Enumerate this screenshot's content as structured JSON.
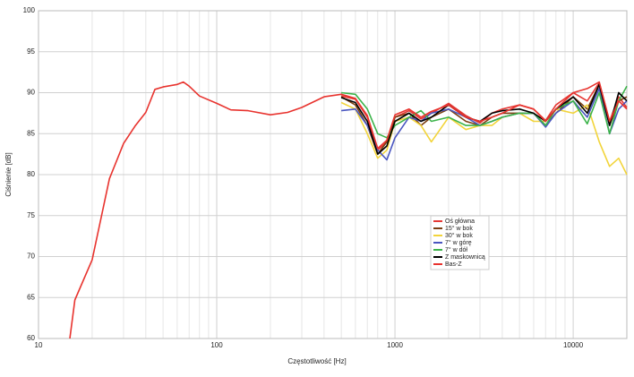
{
  "chart_data": {
    "type": "line",
    "log_x": true,
    "grid": true,
    "legend": "center-right",
    "xlabel": "Częstotliwość [Hz]",
    "ylabel": "Ciśnienie [dB]",
    "xlim": [
      10,
      20000
    ],
    "xticks": [
      10,
      100,
      1000,
      10000
    ],
    "xminorticks": [
      20,
      30,
      40,
      50,
      60,
      70,
      80,
      90,
      200,
      300,
      400,
      500,
      600,
      700,
      800,
      900,
      2000,
      3000,
      4000,
      5000,
      6000,
      7000,
      8000,
      9000
    ],
    "ylim": [
      60,
      100
    ],
    "yticks": [
      60,
      65,
      70,
      75,
      80,
      85,
      90,
      95,
      100
    ],
    "x": [
      15,
      16,
      20,
      25,
      30,
      35,
      40,
      45,
      50,
      60,
      65,
      70,
      80,
      100,
      120,
      150,
      200,
      250,
      300,
      400,
      500,
      600,
      700,
      800,
      900,
      1000,
      1200,
      1400,
      1600,
      2000,
      2500,
      3000,
      3500,
      4000,
      5000,
      6000,
      7000,
      8000,
      10000,
      12000,
      14000,
      16000,
      18000,
      20000
    ],
    "series": [
      {
        "name": "Oś główna",
        "color": "#e53935",
        "values": [
          null,
          null,
          null,
          null,
          null,
          null,
          null,
          null,
          null,
          null,
          null,
          null,
          null,
          null,
          null,
          null,
          null,
          null,
          null,
          null,
          89.6,
          89.2,
          87,
          83,
          84,
          87,
          87.8,
          86.8,
          87.5,
          88.7,
          87.2,
          86.3,
          87.5,
          88,
          88.5,
          88,
          86.6,
          88.5,
          90,
          89,
          91.2,
          86.5,
          89.5,
          88.2
        ]
      },
      {
        "name": "15° w bok",
        "color": "#7b3f12",
        "values": [
          null,
          null,
          null,
          null,
          null,
          null,
          null,
          null,
          null,
          null,
          null,
          null,
          null,
          null,
          null,
          null,
          null,
          null,
          null,
          null,
          89.5,
          88.5,
          86,
          82.5,
          84,
          87,
          87.5,
          86,
          87,
          88,
          86.5,
          86,
          87,
          87.5,
          87.5,
          87.5,
          86,
          87.5,
          89.5,
          88,
          91,
          86,
          89,
          89.5
        ]
      },
      {
        "name": "30° w bok",
        "color": "#f2d43a",
        "values": [
          null,
          null,
          null,
          null,
          null,
          null,
          null,
          null,
          null,
          null,
          null,
          null,
          null,
          null,
          null,
          null,
          null,
          null,
          null,
          null,
          88.8,
          88,
          85,
          82,
          83,
          86.5,
          87,
          86,
          84,
          87,
          85.5,
          86,
          86,
          87,
          87.5,
          86.5,
          86.5,
          88,
          87.5,
          88.5,
          84,
          81,
          82,
          80
        ]
      },
      {
        "name": "7° w górę",
        "color": "#4a56c0",
        "values": [
          null,
          null,
          null,
          null,
          null,
          null,
          null,
          null,
          null,
          null,
          null,
          null,
          null,
          null,
          null,
          null,
          null,
          null,
          null,
          null,
          87.8,
          88,
          86,
          83,
          81.8,
          84.5,
          87,
          86.5,
          87.5,
          88,
          87,
          86,
          86.5,
          87,
          87.5,
          87.5,
          85.8,
          87.5,
          89,
          87,
          90.5,
          85,
          88,
          89
        ]
      },
      {
        "name": "7° w dół",
        "color": "#3cb34a",
        "values": [
          null,
          null,
          null,
          null,
          null,
          null,
          null,
          null,
          null,
          null,
          null,
          null,
          null,
          null,
          null,
          null,
          null,
          null,
          null,
          null,
          90,
          89.8,
          88,
          85,
          84.5,
          86,
          87,
          87.8,
          86.5,
          87,
          86,
          86,
          86.5,
          87,
          87.5,
          87.5,
          86,
          88,
          89,
          86.2,
          90,
          85,
          89,
          90.8
        ]
      },
      {
        "name": "Z maskownicą",
        "color": "#000000",
        "values": [
          null,
          null,
          null,
          null,
          null,
          null,
          null,
          null,
          null,
          null,
          null,
          null,
          null,
          null,
          null,
          null,
          null,
          null,
          null,
          null,
          89.4,
          88.8,
          86.5,
          82.5,
          83.5,
          86.5,
          87.5,
          86.5,
          87,
          88.5,
          87,
          86.5,
          87.5,
          87.8,
          88,
          87.5,
          86.5,
          88,
          89.5,
          87.5,
          91,
          86,
          90,
          89
        ]
      },
      {
        "name": "Bas-Z",
        "color": "#e8332e",
        "values": [
          60,
          64.7,
          69.6,
          79.5,
          83.8,
          86,
          87.6,
          90.4,
          90.7,
          91,
          91.3,
          90.8,
          89.6,
          88.7,
          87.9,
          87.8,
          87.3,
          87.6,
          88.2,
          89.5,
          89.8,
          89.3,
          87.2,
          83.2,
          84.2,
          87.3,
          88,
          87,
          87.7,
          88.5,
          87,
          86.5,
          87,
          87.5,
          88.5,
          88,
          86.5,
          88,
          90,
          90.5,
          91.3,
          86.5,
          89,
          88
        ]
      }
    ]
  }
}
